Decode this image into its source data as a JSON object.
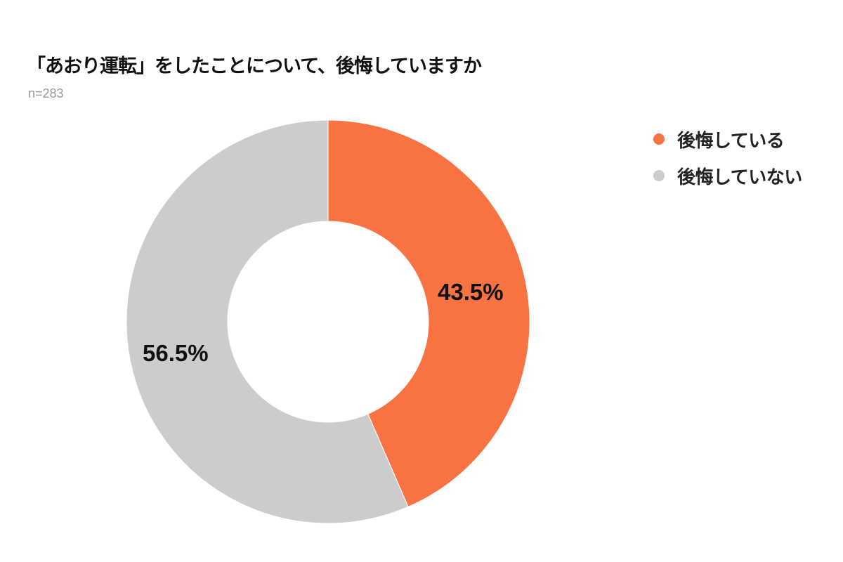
{
  "header": {
    "title": "「あおり運転」をしたことについて、後悔していますか",
    "sample_size": "n=283"
  },
  "legend": {
    "items": [
      {
        "label": "後悔している",
        "color": "#F87341"
      },
      {
        "label": "後悔していない",
        "color": "#CCCCCC"
      }
    ]
  },
  "labels": {
    "regret": "43.5%",
    "no_regret": "56.5%"
  },
  "chart_data": {
    "type": "pie",
    "variant": "donut",
    "title": "「あおり運転」をしたことについて、後悔していますか",
    "subtitle": "n=283",
    "categories": [
      "後悔している",
      "後悔していない"
    ],
    "values": [
      43.5,
      56.5
    ],
    "unit": "%",
    "colors": [
      "#F87341",
      "#CCCCCC"
    ],
    "start_angle": "12 o'clock, clockwise",
    "legend_position": "right",
    "data_labels": [
      "43.5%",
      "56.5%"
    ]
  }
}
